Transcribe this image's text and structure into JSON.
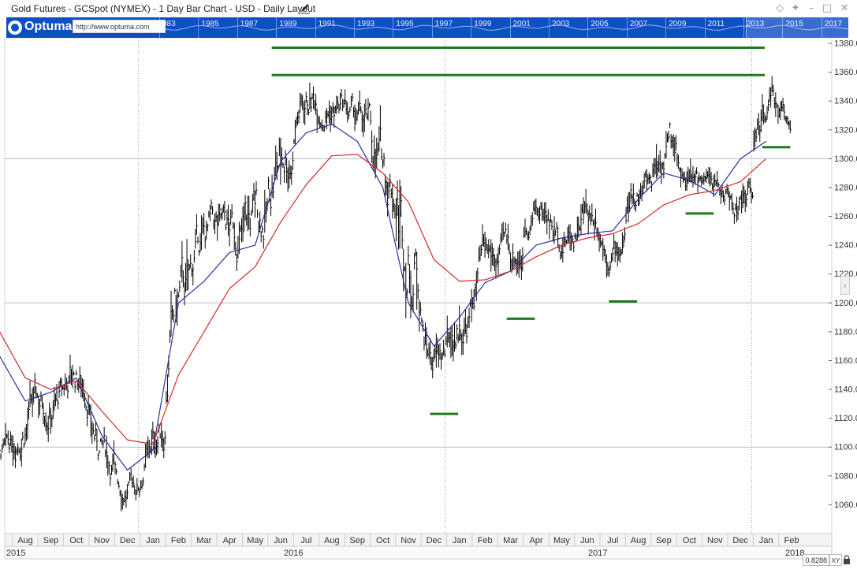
{
  "window": {
    "title": "Gold Futures - GCSpot (NYMEX) - 1 Day Bar Chart - USD - Daily Layout"
  },
  "navigator": {
    "logo_text": "Optuma",
    "url_text": "http://www.optuma.com",
    "years": [
      "983",
      "1985",
      "1987",
      "1989",
      "1991",
      "1993",
      "1995",
      "1997",
      "1999",
      "2001",
      "2003",
      "2005",
      "2007",
      "2009",
      "2011",
      "2013",
      "2015",
      "2017"
    ],
    "background_color": "#0f4fc4"
  },
  "footer": {
    "readout_value": "0.8288",
    "xy_label": "XY",
    "lock_icon": "lock-icon"
  },
  "colors": {
    "price_bars": "#000000",
    "ma_short": "#2b2f9e",
    "ma_long": "#d42a2a",
    "support_resistance": "#1f7a1f",
    "grid": "#b9b9cc"
  },
  "chart_data": {
    "type": "bar",
    "title": "Gold Futures - GCSpot (NYMEX) - 1 Day Bar Chart - USD - Daily Layout",
    "ylim": [
      1040,
      1380
    ],
    "grid": "horizontal at 1100, 1200, 1300",
    "y_ticks": [
      "1060.000",
      "1080.000",
      "1100.000",
      "1120.000",
      "1140.000",
      "1160.000",
      "1180.000",
      "1200.000",
      "1220.000",
      "1240.000",
      "1260.000",
      "1280.000",
      "1300.000",
      "1320.000",
      "1340.000",
      "1360.000",
      "1380.000"
    ],
    "x_month_labels": [
      "Aug",
      "Sep",
      "Oct",
      "Nov",
      "Dec",
      "Jan",
      "Feb",
      "Mar",
      "Apr",
      "May",
      "Jun",
      "Jul",
      "Aug",
      "Sep",
      "Oct",
      "Nov",
      "Dec",
      "Jan",
      "Feb",
      "Mar",
      "Apr",
      "May",
      "Jun",
      "Jul",
      "Aug",
      "Sep",
      "Oct",
      "Nov",
      "Dec",
      "Jan",
      "Feb"
    ],
    "x_year_labels": [
      "2015",
      "2016",
      "2017",
      "2018"
    ],
    "price_path": [
      {
        "month": "2015-07",
        "low": 1080,
        "high": 1105
      },
      {
        "month": "2015-08",
        "low": 1085,
        "high": 1170
      },
      {
        "month": "2015-09",
        "low": 1100,
        "high": 1160
      },
      {
        "month": "2015-10",
        "low": 1120,
        "high": 1190
      },
      {
        "month": "2015-11",
        "low": 1060,
        "high": 1130
      },
      {
        "month": "2015-12",
        "low": 1045,
        "high": 1090
      },
      {
        "month": "2016-01",
        "low": 1070,
        "high": 1120
      },
      {
        "month": "2016-02",
        "low": 1130,
        "high": 1260
      },
      {
        "month": "2016-03",
        "low": 1210,
        "high": 1285
      },
      {
        "month": "2016-04",
        "low": 1210,
        "high": 1280
      },
      {
        "month": "2016-05",
        "low": 1200,
        "high": 1305
      },
      {
        "month": "2016-06",
        "low": 1240,
        "high": 1360
      },
      {
        "month": "2016-07",
        "low": 1310,
        "high": 1378
      },
      {
        "month": "2016-08",
        "low": 1310,
        "high": 1365
      },
      {
        "month": "2016-09",
        "low": 1305,
        "high": 1352
      },
      {
        "month": "2016-10",
        "low": 1245,
        "high": 1340
      },
      {
        "month": "2016-11",
        "low": 1160,
        "high": 1338
      },
      {
        "month": "2016-12",
        "low": 1122,
        "high": 1190
      },
      {
        "month": "2017-01",
        "low": 1145,
        "high": 1220
      },
      {
        "month": "2017-02",
        "low": 1195,
        "high": 1265
      },
      {
        "month": "2017-03",
        "low": 1195,
        "high": 1262
      },
      {
        "month": "2017-04",
        "low": 1245,
        "high": 1295
      },
      {
        "month": "2017-05",
        "low": 1215,
        "high": 1270
      },
      {
        "month": "2017-06",
        "low": 1240,
        "high": 1298
      },
      {
        "month": "2017-07",
        "low": 1205,
        "high": 1260
      },
      {
        "month": "2017-08",
        "low": 1255,
        "high": 1300
      },
      {
        "month": "2017-09",
        "low": 1270,
        "high": 1357
      },
      {
        "month": "2017-10",
        "low": 1260,
        "high": 1305
      },
      {
        "month": "2017-11",
        "low": 1265,
        "high": 1297
      },
      {
        "month": "2017-12",
        "low": 1238,
        "high": 1290
      },
      {
        "month": "2018-01",
        "low": 1305,
        "high": 1365
      },
      {
        "month": "2018-02",
        "low": 1310,
        "high": 1350
      }
    ],
    "series": [
      {
        "values": [
          1163,
          1132,
          1138,
          1148,
          1108,
          1084,
          1098,
          1200,
          1215,
          1235,
          1240,
          1298,
          1318,
          1324,
          1312,
          1280,
          1200,
          1170,
          1190,
          1214,
          1222,
          1240,
          1245,
          1248,
          1250,
          1272,
          1290,
          1285,
          1275,
          1300,
          1312
        ]
      },
      {
        "values": [
          1180,
          1148,
          1140,
          1146,
          1125,
          1105,
          1102,
          1150,
          1180,
          1210,
          1225,
          1256,
          1282,
          1302,
          1303,
          1290,
          1270,
          1230,
          1215,
          1216,
          1222,
          1232,
          1240,
          1245,
          1248,
          1255,
          1268,
          1275,
          1278,
          1284,
          1300
        ]
      }
    ],
    "horizontal_levels": [
      {
        "value": 1377,
        "from": "2016-06",
        "to": "2018-01"
      },
      {
        "value": 1358,
        "from": "2016-06",
        "to": "2018-01"
      },
      {
        "value": 1308,
        "from": "2018-01",
        "to": "2018-02"
      },
      {
        "value": 1262,
        "from": "2017-10",
        "to": "2017-11"
      },
      {
        "value": 1201,
        "from": "2017-07",
        "to": "2017-08"
      },
      {
        "value": 1189,
        "from": "2017-03",
        "to": "2017-04"
      },
      {
        "value": 1123,
        "from": "2016-12",
        "to": "2017-01"
      }
    ]
  }
}
